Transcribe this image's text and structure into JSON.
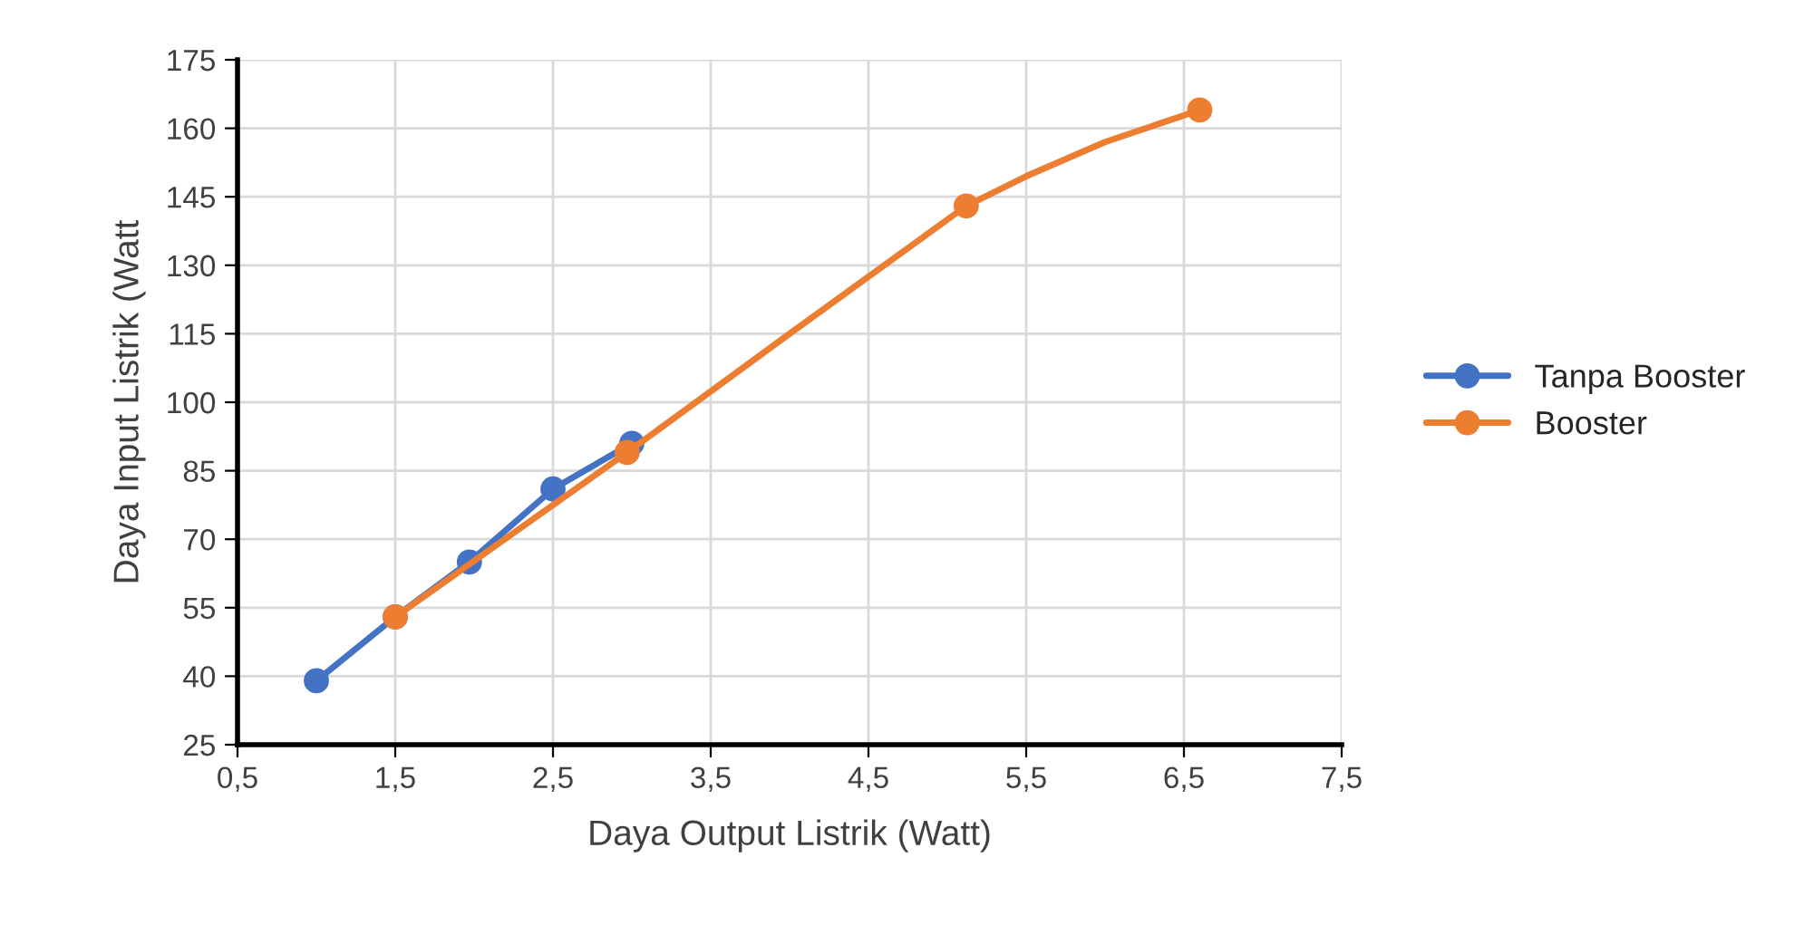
{
  "chart_data": {
    "type": "line",
    "xlabel": "Daya Output Listrik (Watt)",
    "ylabel": "Daya Input Listrik (Watt",
    "series": [
      {
        "name": "Tanpa Booster",
        "color": "#4472c4",
        "x": [
          1.0,
          1.5,
          1.97,
          2.5,
          3.0
        ],
        "values": [
          39,
          53,
          65,
          81,
          91
        ]
      },
      {
        "name": "Booster",
        "color": "#ed7d31",
        "x": [
          1.5,
          2.97,
          4.0,
          5.12,
          5.5,
          6.0,
          6.6
        ],
        "values": [
          53,
          89,
          115,
          143,
          149.5,
          157,
          164
        ],
        "marker": "none"
      },
      {
        "type": "scatter",
        "color": "#ed7d31",
        "x": [
          1.5,
          2.97,
          5.12,
          6.6
        ],
        "values": [
          53,
          89,
          143,
          164
        ]
      }
    ],
    "xlim": [
      0.5,
      7.5
    ],
    "xticks": [
      {
        "value": 0.5,
        "label": "0,5"
      },
      {
        "value": 1.5,
        "label": "1,5"
      },
      {
        "value": 2.5,
        "label": "2,5"
      },
      {
        "value": 3.5,
        "label": "3,5"
      },
      {
        "value": 4.5,
        "label": "4,5"
      },
      {
        "value": 5.5,
        "label": "5,5"
      },
      {
        "value": 6.5,
        "label": "6,5"
      },
      {
        "value": 7.5,
        "label": "7,5"
      }
    ],
    "ylim": [
      25,
      175
    ],
    "yticks": [
      25,
      40,
      55,
      70,
      85,
      100,
      115,
      130,
      145,
      160,
      175
    ],
    "grid": true,
    "legend": "right",
    "marker": "circle",
    "line_style": "solid"
  }
}
